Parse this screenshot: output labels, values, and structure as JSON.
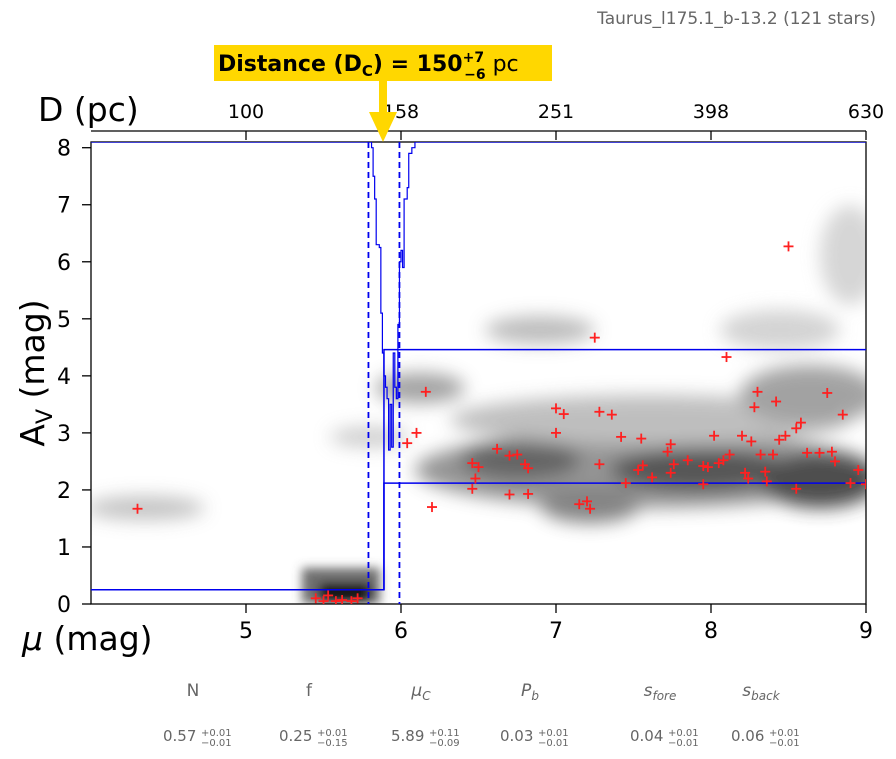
{
  "figure": {
    "title": "Taurus_l175.1_b-13.2 (121 stars)",
    "callout": {
      "label": "Distance (D",
      "label_sub": "C",
      "label_eq": ") = 150",
      "sup": "+7",
      "sub": "−6",
      "unit": " pc"
    }
  },
  "chart_data": {
    "type": "scatter",
    "xlabel_prefix": "μ",
    "xlabel_suffix": " (mag)",
    "ylabel_main": "A",
    "ylabel_sub": "V",
    "ylabel_suffix": " (mag)",
    "top_axis_label": "D (pc)",
    "xlim": [
      4,
      9
    ],
    "ylim": [
      0,
      8.1
    ],
    "x_ticks": [
      5,
      6,
      7,
      8,
      9
    ],
    "y_ticks": [
      0,
      1,
      2,
      3,
      4,
      5,
      6,
      7,
      8
    ],
    "top_ticks": [
      {
        "mu": 5.0,
        "label": "100"
      },
      {
        "mu": 6.0,
        "label": "158"
      },
      {
        "mu": 7.0,
        "label": "251"
      },
      {
        "mu": 8.0,
        "label": "398"
      },
      {
        "mu": 9.0,
        "label": "630"
      }
    ],
    "distance_modulus": 5.89,
    "distance_modulus_bounds": [
      5.79,
      5.99
    ],
    "model_foreground_av": 0.25,
    "model_background_av": [
      2.12,
      4.46
    ],
    "posterior_step": [
      [
        5.79,
        8.1
      ],
      [
        5.81,
        8.0
      ],
      [
        5.82,
        7.5
      ],
      [
        5.83,
        7.1
      ],
      [
        5.84,
        6.3
      ],
      [
        5.86,
        6.25
      ],
      [
        5.87,
        5.1
      ],
      [
        5.88,
        4.4
      ],
      [
        5.89,
        4.0
      ],
      [
        5.9,
        3.8
      ],
      [
        5.91,
        3.6
      ],
      [
        5.92,
        2.7
      ],
      [
        5.93,
        3.5
      ],
      [
        5.94,
        2.75
      ],
      [
        5.95,
        4.4
      ],
      [
        5.96,
        3.8
      ],
      [
        5.97,
        3.6
      ],
      [
        5.98,
        4.9
      ],
      [
        5.99,
        6.0
      ],
      [
        6.0,
        6.2
      ],
      [
        6.01,
        5.9
      ],
      [
        6.02,
        7.1
      ],
      [
        6.04,
        7.3
      ],
      [
        6.05,
        7.9
      ],
      [
        6.07,
        8.0
      ],
      [
        6.09,
        8.1
      ]
    ],
    "stars": [
      [
        4.3,
        1.67
      ],
      [
        5.45,
        0.1
      ],
      [
        5.5,
        0.05
      ],
      [
        5.53,
        0.15
      ],
      [
        5.58,
        0.05
      ],
      [
        5.62,
        0.07
      ],
      [
        5.68,
        0.05
      ],
      [
        5.72,
        0.1
      ],
      [
        6.04,
        2.82
      ],
      [
        6.1,
        3.0
      ],
      [
        6.16,
        3.72
      ],
      [
        6.2,
        1.7
      ],
      [
        6.46,
        2.47
      ],
      [
        6.48,
        2.2
      ],
      [
        6.5,
        2.4
      ],
      [
        6.46,
        2.02
      ],
      [
        6.62,
        2.72
      ],
      [
        6.7,
        2.6
      ],
      [
        6.75,
        2.62
      ],
      [
        6.8,
        2.45
      ],
      [
        6.82,
        2.38
      ],
      [
        6.7,
        1.92
      ],
      [
        6.82,
        1.93
      ],
      [
        7.0,
        3.43
      ],
      [
        7.05,
        3.33
      ],
      [
        7.0,
        3.0
      ],
      [
        7.15,
        1.75
      ],
      [
        7.2,
        1.8
      ],
      [
        7.22,
        1.67
      ],
      [
        7.25,
        4.67
      ],
      [
        7.28,
        3.37
      ],
      [
        7.28,
        2.45
      ],
      [
        7.36,
        3.32
      ],
      [
        7.42,
        2.93
      ],
      [
        7.45,
        2.12
      ],
      [
        7.53,
        2.35
      ],
      [
        7.55,
        2.9
      ],
      [
        7.56,
        2.43
      ],
      [
        7.62,
        2.22
      ],
      [
        7.72,
        2.67
      ],
      [
        7.74,
        2.8
      ],
      [
        7.74,
        2.3
      ],
      [
        7.76,
        2.45
      ],
      [
        7.85,
        2.52
      ],
      [
        7.95,
        2.42
      ],
      [
        7.98,
        2.4
      ],
      [
        8.02,
        2.95
      ],
      [
        7.95,
        2.1
      ],
      [
        8.05,
        2.47
      ],
      [
        8.08,
        2.52
      ],
      [
        8.1,
        4.33
      ],
      [
        8.12,
        2.62
      ],
      [
        8.2,
        2.95
      ],
      [
        8.22,
        2.3
      ],
      [
        8.24,
        2.2
      ],
      [
        8.26,
        2.85
      ],
      [
        8.3,
        3.72
      ],
      [
        8.28,
        3.45
      ],
      [
        8.32,
        2.62
      ],
      [
        8.35,
        2.32
      ],
      [
        8.36,
        2.15
      ],
      [
        8.4,
        2.62
      ],
      [
        8.42,
        3.55
      ],
      [
        8.44,
        2.88
      ],
      [
        8.5,
        6.27
      ],
      [
        8.48,
        2.95
      ],
      [
        8.55,
        3.08
      ],
      [
        8.58,
        3.18
      ],
      [
        8.55,
        2.02
      ],
      [
        8.62,
        2.65
      ],
      [
        8.7,
        2.65
      ],
      [
        8.75,
        3.7
      ],
      [
        8.78,
        2.67
      ],
      [
        8.8,
        2.5
      ],
      [
        8.85,
        3.32
      ],
      [
        8.9,
        2.12
      ],
      [
        8.95,
        2.35
      ],
      [
        9.0,
        2.1
      ]
    ]
  },
  "params": [
    {
      "name": "N",
      "math": false,
      "val": "0.57",
      "plus": "+0.01",
      "minus": "−0.01"
    },
    {
      "name": "f",
      "math": false,
      "val": "0.25",
      "plus": "+0.01",
      "minus": "−0.15"
    },
    {
      "name": "μ",
      "sub": "C",
      "math": true,
      "val": "5.89",
      "plus": "+0.11",
      "minus": "−0.09"
    },
    {
      "name": "P",
      "sub": "b",
      "math": true,
      "val": "0.03",
      "plus": "+0.01",
      "minus": "−0.01"
    },
    {
      "name": "s",
      "sub": "fore",
      "math": true,
      "val": "0.04",
      "plus": "+0.01",
      "minus": "−0.01"
    },
    {
      "name": "s",
      "sub": "back",
      "math": true,
      "val": "0.06",
      "plus": "+0.01",
      "minus": "−0.01"
    }
  ]
}
